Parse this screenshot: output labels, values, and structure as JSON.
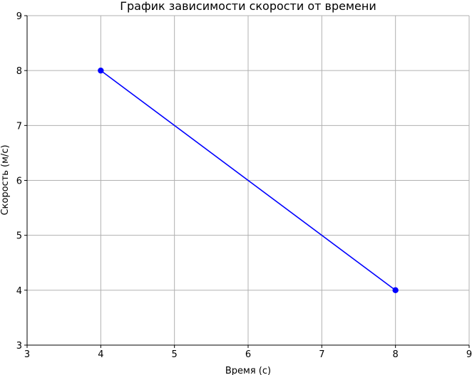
{
  "chart_data": {
    "type": "line",
    "title": "График зависимости скорости от времени",
    "xlabel": "Время (с)",
    "ylabel": "Скорость (м/с)",
    "xlim": [
      3,
      9
    ],
    "ylim": [
      3,
      9
    ],
    "xticks": [
      3,
      4,
      5,
      6,
      7,
      8,
      9
    ],
    "yticks": [
      3,
      4,
      5,
      6,
      7,
      8,
      9
    ],
    "grid": true,
    "series": [
      {
        "x": [
          4,
          8
        ],
        "y": [
          8,
          4
        ],
        "color": "#0000ff",
        "marker": "circle"
      }
    ]
  }
}
